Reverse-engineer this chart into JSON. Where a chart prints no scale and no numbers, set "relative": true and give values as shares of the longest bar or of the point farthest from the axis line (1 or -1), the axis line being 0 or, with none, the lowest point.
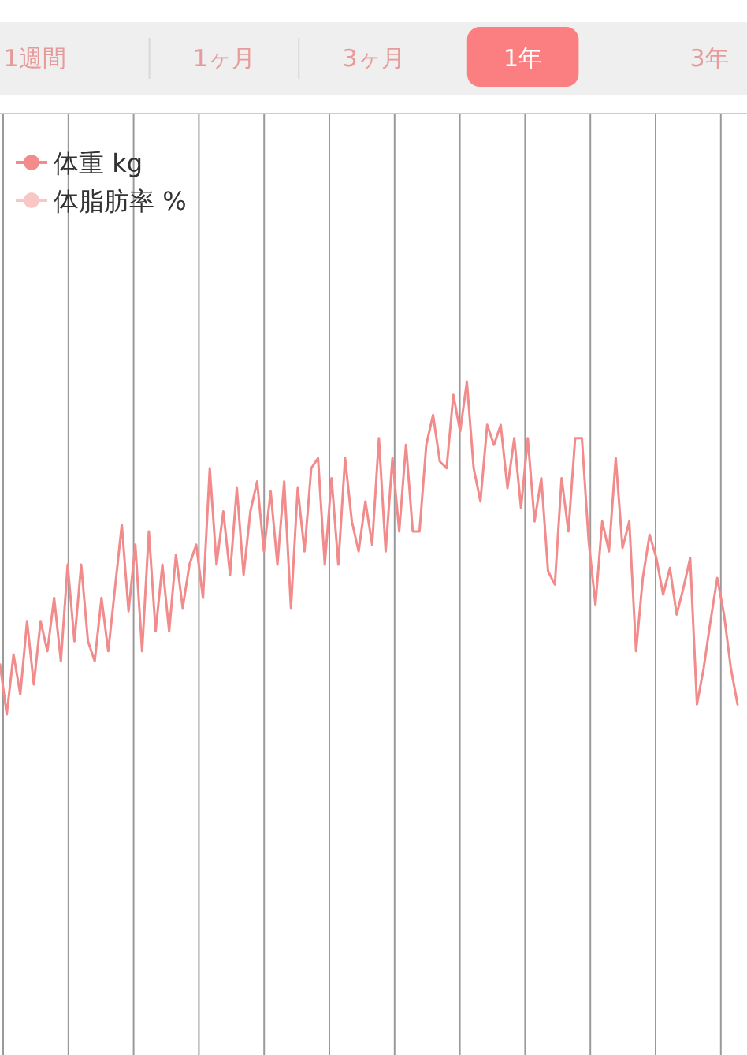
{
  "chart_data": {
    "type": "line",
    "relative": true,
    "annotations": [
      "1週間",
      "1ヶ月",
      "3ヶ月",
      "1年",
      "3年"
    ],
    "categories": [
      null,
      null,
      null,
      null,
      null,
      null,
      null,
      null,
      null,
      null,
      null,
      null,
      null,
      null,
      null,
      null,
      null,
      null,
      null,
      null,
      null,
      null,
      null,
      null,
      null,
      null,
      null,
      null,
      null,
      null,
      null,
      null,
      null,
      null,
      null,
      null,
      null,
      null,
      null,
      null,
      null,
      null,
      null,
      null,
      null,
      null,
      null,
      null,
      null,
      null,
      null,
      null,
      null,
      null,
      null,
      null,
      null,
      null,
      null,
      null,
      null,
      null,
      null,
      null,
      null,
      null,
      null,
      null,
      null,
      null,
      null,
      null,
      null,
      null,
      null,
      null,
      null,
      null,
      null,
      null,
      null,
      null,
      null,
      null,
      null,
      null,
      null,
      null,
      null,
      null,
      null,
      null,
      null,
      null,
      null,
      null,
      null,
      null,
      null,
      null,
      null,
      null,
      null,
      null,
      null,
      null,
      null,
      null,
      null,
      null
    ],
    "grid": "x",
    "legend": "top left",
    "series": [
      {
        "name": "体重 kg",
        "color": "#f28b8b",
        "values": [
          0.15,
          0,
          0.18,
          0.06,
          0.28,
          0.09,
          0.28,
          0.19,
          0.35,
          0.16,
          0.45,
          0.22,
          0.45,
          0.22,
          0.16,
          0.35,
          0.19,
          0.38,
          0.57,
          0.31,
          0.51,
          0.19,
          0.55,
          0.25,
          0.45,
          0.25,
          0.48,
          0.32,
          0.45,
          0.51,
          0.35,
          0.74,
          0.45,
          0.61,
          0.42,
          0.68,
          0.42,
          0.61,
          0.7,
          0.49,
          0.67,
          0.45,
          0.7,
          0.32,
          0.68,
          0.49,
          0.74,
          0.77,
          0.45,
          0.71,
          0.45,
          0.77,
          0.58,
          0.49,
          0.64,
          0.51,
          0.83,
          0.49,
          0.77,
          0.55,
          0.81,
          0.55,
          0.55,
          0.81,
          0.9,
          0.76,
          0.74,
          0.96,
          0.85,
          1,
          0.74,
          0.64,
          0.87,
          0.81,
          0.87,
          0.68,
          0.83,
          0.62,
          0.83,
          0.58,
          0.71,
          0.43,
          0.39,
          0.71,
          0.55,
          0.83,
          0.83,
          0.52,
          0.33,
          0.58,
          0.49,
          0.77,
          0.5,
          0.58,
          0.19,
          0.41,
          0.54,
          0.47,
          0.36,
          0.44,
          0.3,
          0.38,
          0.47,
          0.03,
          0.14,
          0.28,
          0.41,
          0.3,
          0.14,
          0.03
        ]
      },
      {
        "name": "体脂肪率 %",
        "color": "#f9c6c6",
        "values": [
          null,
          null,
          null,
          null,
          null,
          null,
          null,
          null,
          null,
          null,
          null,
          null,
          null,
          null,
          null,
          null,
          null,
          null,
          null,
          null,
          null,
          null,
          null,
          null,
          null,
          null,
          null,
          null,
          null,
          null,
          null,
          null,
          null,
          null,
          null,
          null,
          null,
          null,
          null,
          null,
          null,
          null,
          null,
          null,
          null,
          null,
          null,
          null,
          null,
          null,
          null,
          null,
          null,
          null,
          null,
          null,
          null,
          null,
          null,
          null,
          null,
          null,
          null,
          null,
          null,
          null,
          null,
          null,
          null,
          null,
          null,
          null,
          null,
          null,
          null,
          null,
          null,
          null,
          null,
          null,
          null,
          null,
          null,
          null,
          null,
          null,
          null,
          null,
          null,
          null,
          null,
          null,
          null,
          null,
          null,
          null,
          null,
          null,
          null,
          null,
          null,
          null,
          null,
          null,
          null,
          null,
          null,
          null,
          null,
          null
        ]
      }
    ]
  }
}
